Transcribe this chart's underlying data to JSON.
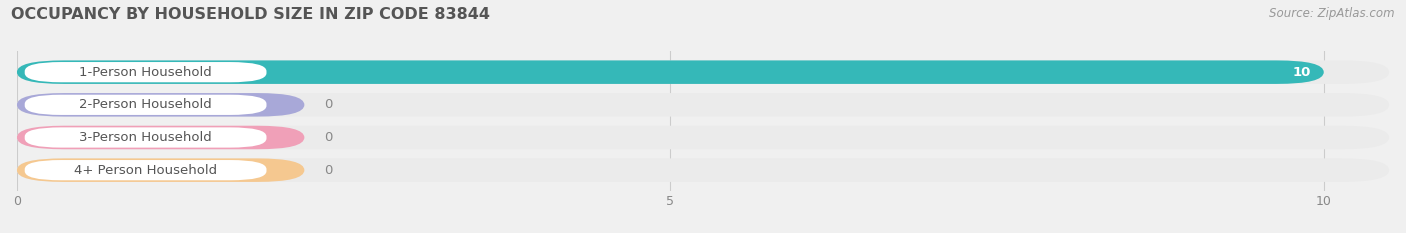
{
  "title": "OCCUPANCY BY HOUSEHOLD SIZE IN ZIP CODE 83844",
  "source": "Source: ZipAtlas.com",
  "categories": [
    "1-Person Household",
    "2-Person Household",
    "3-Person Household",
    "4+ Person Household"
  ],
  "values": [
    10,
    0,
    0,
    0
  ],
  "bar_colors": [
    "#35b8b8",
    "#a8a8d8",
    "#f0a0b8",
    "#f5c890"
  ],
  "xlim": [
    0,
    10.5
  ],
  "xtick_vals": [
    0,
    5,
    10
  ],
  "background_color": "#f0f0f0",
  "row_bg_color": "#ebebeb",
  "title_fontsize": 11.5,
  "source_fontsize": 8.5,
  "label_fontsize": 9.5,
  "value_fontsize": 9.5
}
